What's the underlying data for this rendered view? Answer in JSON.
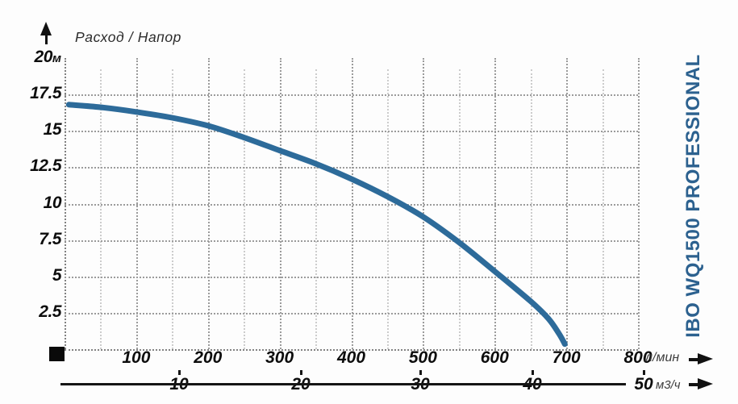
{
  "title": "Расход / Напор",
  "brand_label": "IBO WQ1500 PROFESSIONAL",
  "colors": {
    "curve": "#2d6b9a",
    "brand_text": "#2c618f",
    "grid_major": "#9b9b9b",
    "grid_minor": "#cccccc",
    "axis_text": "#0d0d0d"
  },
  "y_axis": {
    "unit": "м",
    "top_tick": "20",
    "ticks": [
      "17.5",
      "15",
      "12.5",
      "10",
      "7.5",
      "5",
      "2.5"
    ]
  },
  "x_axis_primary": {
    "unit": "л/мин",
    "ticks": [
      "100",
      "200",
      "300",
      "400",
      "500",
      "600",
      "700",
      "800"
    ]
  },
  "x_axis_secondary": {
    "unit": "м3/ч",
    "ticks": [
      "10",
      "20",
      "30",
      "40",
      "50"
    ]
  },
  "chart_data": {
    "type": "line",
    "title": "Расход / Напор",
    "xlabel": "л/мин",
    "xlabel_secondary": "м3/ч",
    "ylabel": "м",
    "xlim": [
      0,
      800
    ],
    "ylim": [
      0,
      20
    ],
    "grid": true,
    "x_ticks_lmin": [
      100,
      200,
      300,
      400,
      500,
      600,
      700,
      800
    ],
    "x_ticks_m3h": [
      10,
      20,
      30,
      40,
      50
    ],
    "y_ticks": [
      2.5,
      5,
      7.5,
      10,
      12.5,
      15,
      17.5,
      20
    ],
    "series": [
      {
        "name": "IBO WQ1500 PROFESSIONAL",
        "x_unit": "л/мин",
        "y_unit": "м",
        "points": [
          [
            6,
            16.8
          ],
          [
            50,
            16.62
          ],
          [
            100,
            16.3
          ],
          [
            150,
            15.9
          ],
          [
            200,
            15.35
          ],
          [
            250,
            14.55
          ],
          [
            300,
            13.65
          ],
          [
            350,
            12.75
          ],
          [
            400,
            11.7
          ],
          [
            450,
            10.5
          ],
          [
            500,
            9.1
          ],
          [
            550,
            7.35
          ],
          [
            600,
            5.35
          ],
          [
            650,
            3.3
          ],
          [
            675,
            2.1
          ],
          [
            690,
            1.05
          ],
          [
            698,
            0.35
          ]
        ]
      }
    ]
  }
}
